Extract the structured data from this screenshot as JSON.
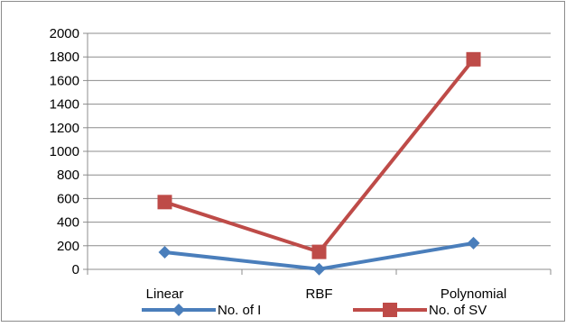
{
  "chart_data": {
    "type": "line",
    "title": "",
    "xlabel": "",
    "ylabel": "",
    "categories": [
      "Linear",
      "RBF",
      "Polynomial"
    ],
    "ylim": [
      0,
      2000
    ],
    "yticks": [
      "0",
      "200",
      "400",
      "600",
      "800",
      "1000",
      "1200",
      "1400",
      "1600",
      "1800",
      "2000"
    ],
    "grid": true,
    "legend_position": "bottom",
    "series": [
      {
        "name": "No. of I",
        "values": [
          145,
          2,
          222
        ],
        "color": "#4A7EBB",
        "marker": "diamond"
      },
      {
        "name": "No. of SV",
        "values": [
          570,
          148,
          1780
        ],
        "color": "#BE4B48",
        "marker": "square"
      }
    ]
  }
}
